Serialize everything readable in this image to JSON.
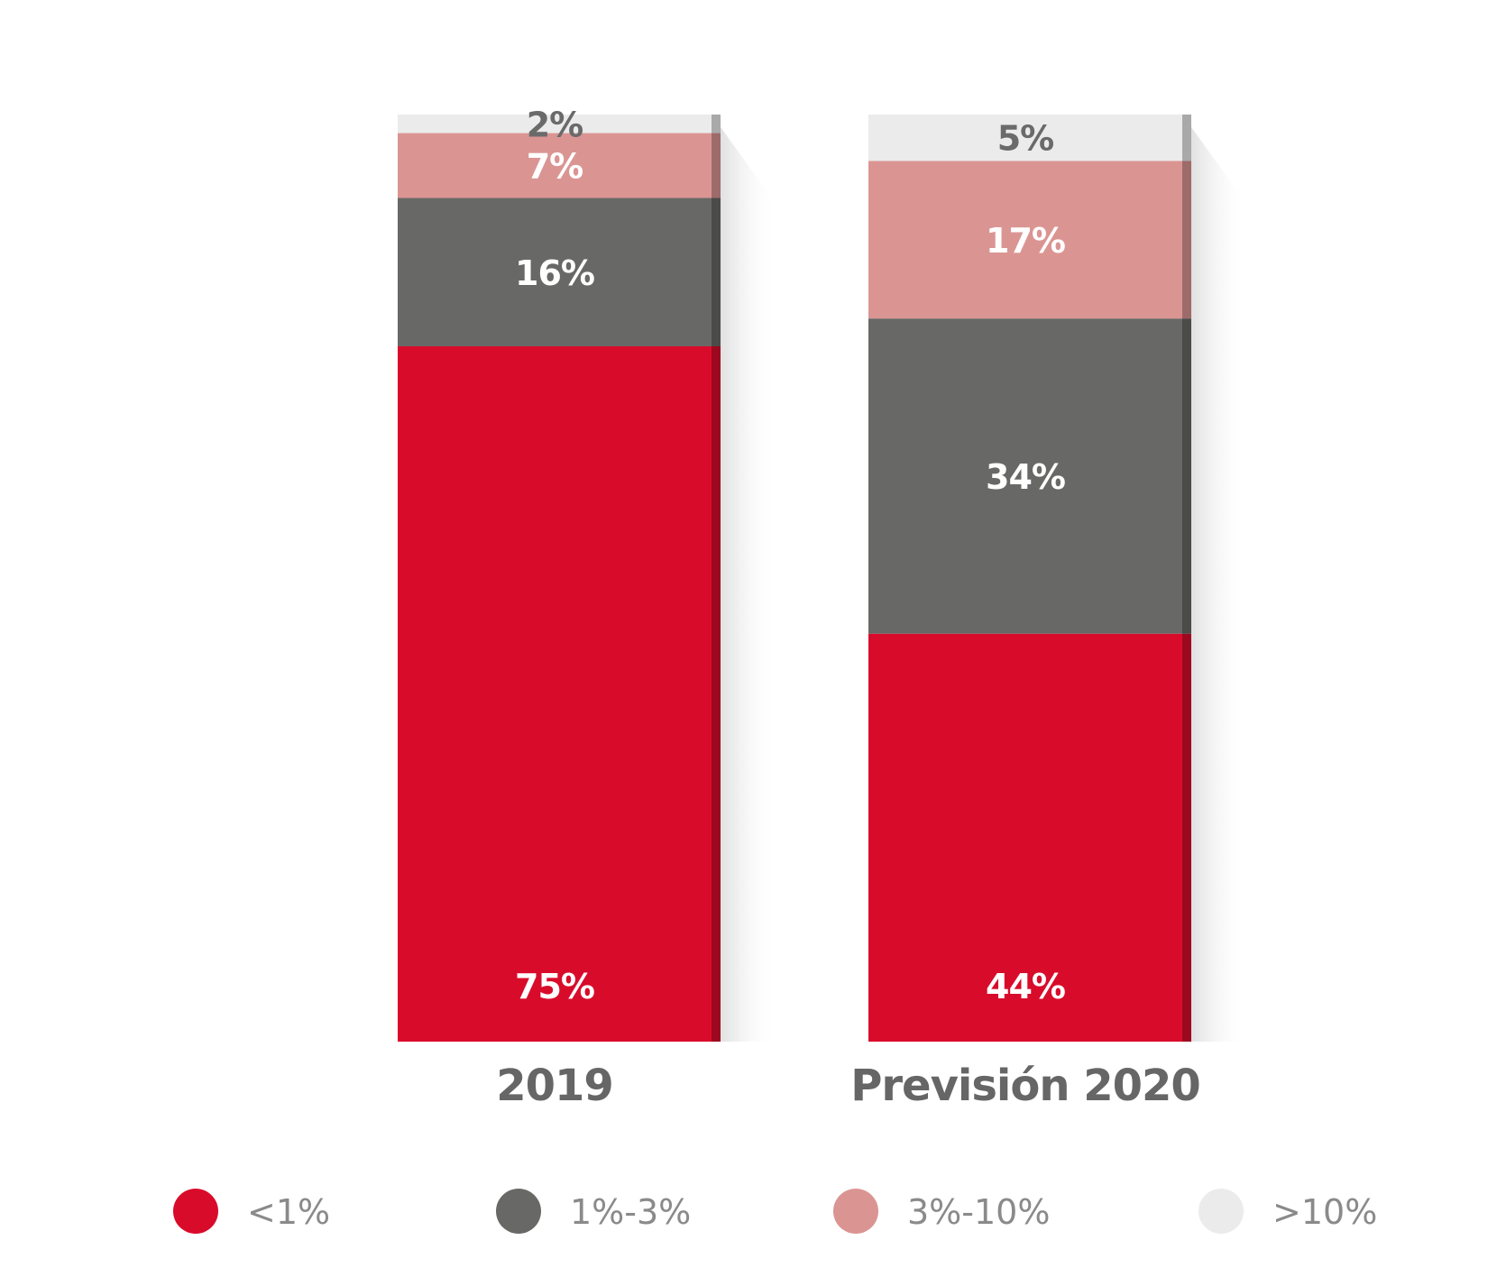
{
  "chart_data": {
    "type": "bar",
    "stacked": true,
    "normalized": true,
    "categories": [
      "2019",
      "Previsión 2020"
    ],
    "series": [
      {
        "name": "<1%",
        "values": [
          75,
          44
        ],
        "labels": [
          "75%",
          "44%"
        ],
        "color": "#d90b2b",
        "label_color": "#ffffff"
      },
      {
        "name": "1%-3%",
        "values": [
          16,
          34
        ],
        "labels": [
          "16%",
          "34%"
        ],
        "color": "#686866",
        "label_color": "#ffffff"
      },
      {
        "name": "3%-10%",
        "values": [
          7,
          17
        ],
        "labels": [
          "7%",
          "17%"
        ],
        "color": "#da9593",
        "label_color": "#ffffff"
      },
      {
        "name": ">10%",
        "values": [
          2,
          5
        ],
        "labels": [
          "2%",
          "5%"
        ],
        "color": "#ebebeb",
        "label_color": "#6a6a6a"
      }
    ],
    "ylim": [
      0,
      100
    ],
    "legend": "bottom",
    "grid": false
  }
}
